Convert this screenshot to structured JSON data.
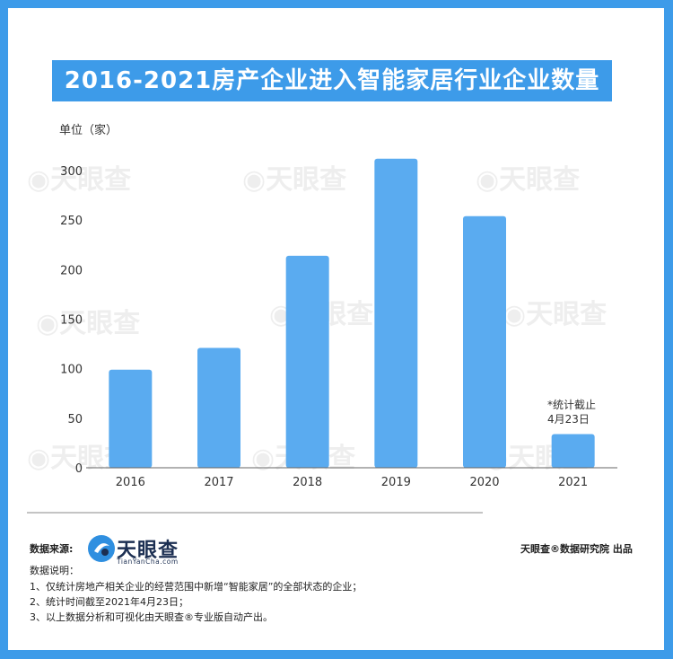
{
  "page": {
    "title": "2016-2021房产企业进入智能家居行业企业数量",
    "unit_label": "单位（家）",
    "note": [
      "*统计截止",
      "4月23日"
    ]
  },
  "footer": {
    "source_label": "数据来源:",
    "logo_name": "天眼查",
    "logo_sub": "TianYanCha.com",
    "credit": "天眼查®数据研究院 出品",
    "explain_title": "数据说明：",
    "explain_lines": [
      "1、仅统计房地产相关企业的经营范围中新增“智能家居”的全部状态的企业；",
      "2、统计时间截至2021年4月23日；",
      "3、以上数据分析和可视化由天眼查®专业版自动产出。"
    ]
  },
  "colors": {
    "background": "#3d9be9",
    "bar": "#5aabf0",
    "axis": "#333333"
  },
  "chart_data": {
    "type": "bar",
    "title": "2016-2021房产企业进入智能家居行业企业数量",
    "ylabel": "单位（家）",
    "xlabel": "",
    "categories": [
      "2016",
      "2017",
      "2018",
      "2019",
      "2020",
      "2021"
    ],
    "values": [
      99,
      121,
      214,
      312,
      254,
      34
    ],
    "ylim": [
      0,
      300
    ],
    "yticks": [
      0,
      50,
      100,
      150,
      200,
      250,
      300
    ],
    "grid": false,
    "legend": "none"
  }
}
